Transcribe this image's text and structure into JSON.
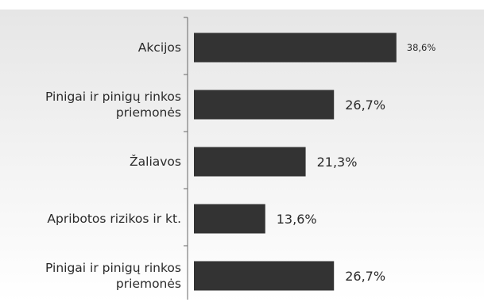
{
  "chart_data": {
    "type": "bar",
    "orientation": "horizontal",
    "categories": [
      "Akcijos",
      "Pinigai ir pinigų rinkos priemonės",
      "Žaliavos",
      "Apribotos rizikos ir kt.",
      "Pinigai ir pinigų rinkos priemonės"
    ],
    "category_lines": [
      [
        "Akcijos"
      ],
      [
        "Pinigai ir pinigų rinkos",
        "priemonės"
      ],
      [
        "Žaliavos"
      ],
      [
        "Apribotos rizikos ir kt."
      ],
      [
        "Pinigai ir pinigų rinkos",
        "priemonės"
      ]
    ],
    "values": [
      38.6,
      26.7,
      21.3,
      13.6,
      26.7
    ],
    "value_labels": [
      "38,6%",
      "26,7%",
      "21,3%",
      "13,6%",
      "26,7%"
    ],
    "xlim": [
      0,
      40
    ],
    "grid": false,
    "legend": "none",
    "bar_color": "#333333",
    "background_gradient": [
      "#e6e6e6",
      "#ffffff"
    ],
    "axis_color": "#666666"
  }
}
